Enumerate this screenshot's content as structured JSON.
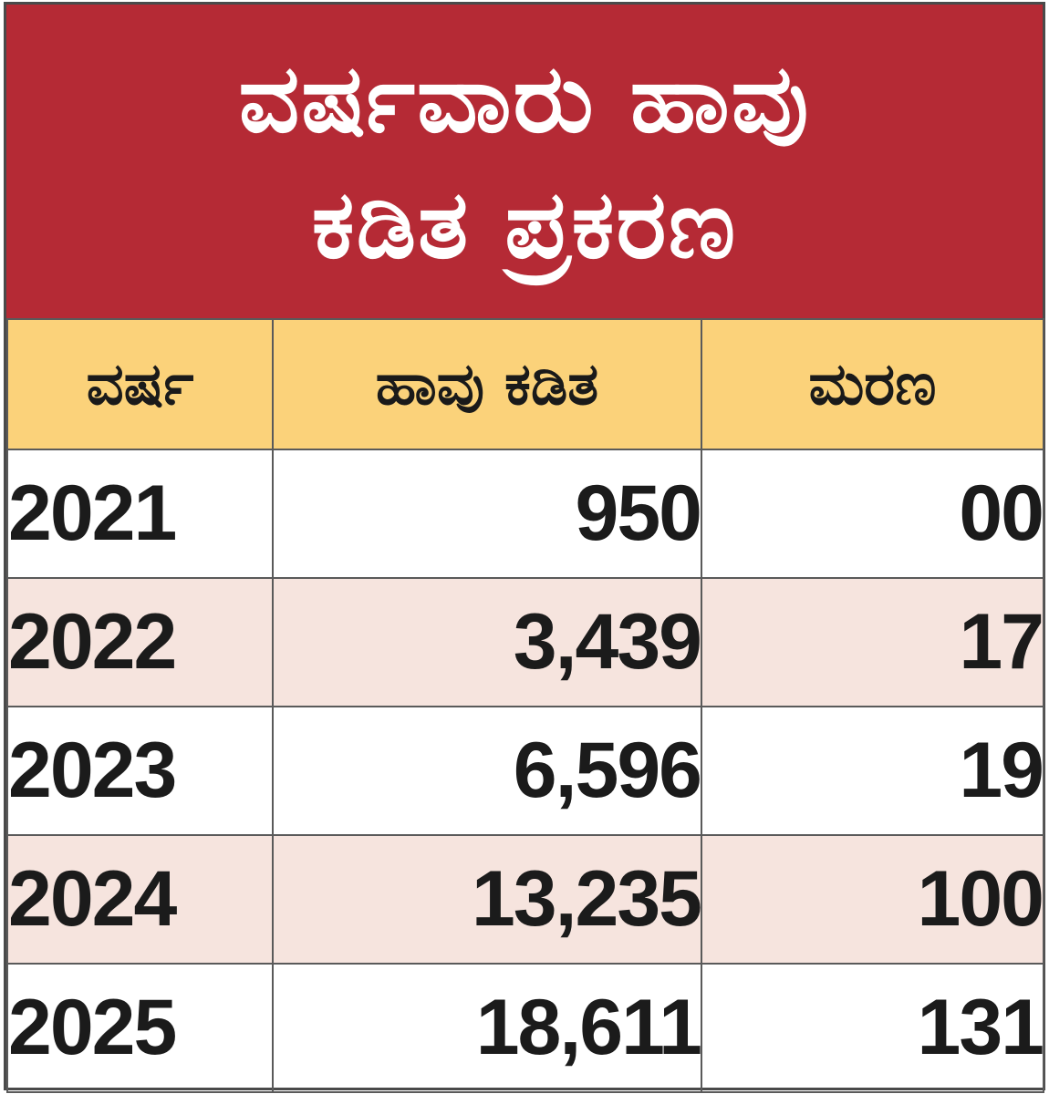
{
  "title": {
    "line1": "ವರ್ಷವಾರು ಹಾವು",
    "line2": "ಕಡಿತ ಪ್ರಕರಣ"
  },
  "columns": {
    "year": "ವರ್ಷ",
    "bites": "ಹಾವು ಕಡಿತ",
    "deaths": "ಮರಣ"
  },
  "rows": [
    {
      "year": "2021",
      "bites": "950",
      "deaths": "00"
    },
    {
      "year": "2022",
      "bites": "3,439",
      "deaths": "17"
    },
    {
      "year": "2023",
      "bites": "6,596",
      "deaths": "19"
    },
    {
      "year": "2024",
      "bites": "13,235",
      "deaths": "100"
    },
    {
      "year": "2025",
      "bites": "18,611",
      "deaths": "131"
    }
  ],
  "colors": {
    "title_background": "#b52a35",
    "header_background": "#fbd27a",
    "alternate_row": "#f6e4de"
  }
}
